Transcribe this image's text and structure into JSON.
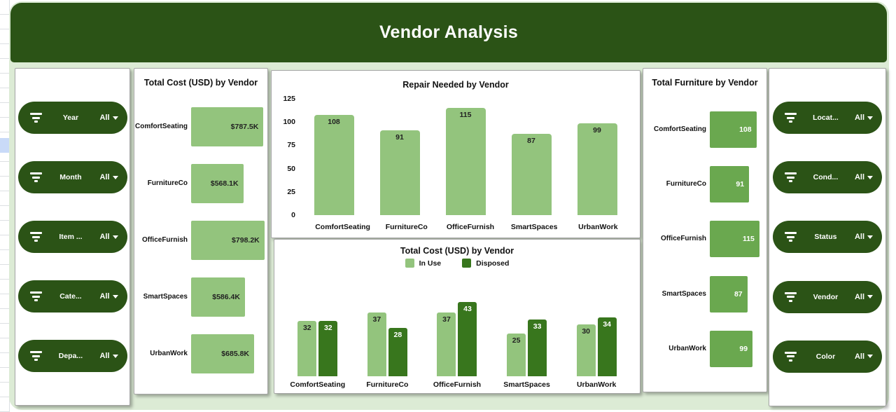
{
  "header": {
    "title": "Vendor Analysis"
  },
  "colors": {
    "header_green": "#2b5316",
    "pill_green": "#2b5316",
    "dashboard_bg": "#dcebd5",
    "light_bar": "#93c47d",
    "medium_bar": "#6aa84f",
    "dark_bar": "#38761d",
    "selected_cell_blue": "#c9daf8"
  },
  "filters": {
    "all_label": "All",
    "left": [
      {
        "label": "Year",
        "value": "All"
      },
      {
        "label": "Month",
        "value": "All"
      },
      {
        "label": "Item ...",
        "value": "All"
      },
      {
        "label": "Cate...",
        "value": "All"
      },
      {
        "label": "Depa...",
        "value": "All"
      }
    ],
    "right": [
      {
        "label": "Locat...",
        "value": "All"
      },
      {
        "label": "Cond...",
        "value": "All"
      },
      {
        "label": "Status",
        "value": "All"
      },
      {
        "label": "Vendor",
        "value": "All"
      },
      {
        "label": "Color",
        "value": "All"
      }
    ]
  },
  "chart_data": [
    {
      "id": "total-cost-by-vendor",
      "type": "bar",
      "orientation": "horizontal",
      "title": "Total Cost (USD) by Vendor",
      "categories": [
        "ComfortSeating",
        "FurnitureCo",
        "OfficeFurnish",
        "SmartSpaces",
        "UrbanWork"
      ],
      "values": [
        787.5,
        568.1,
        798.2,
        586.4,
        685.8
      ],
      "value_labels": [
        "$787.5K",
        "$568.1K",
        "$798.2K",
        "$586.4K",
        "$685.8K"
      ],
      "xlim": [
        0,
        800
      ],
      "bar_color": "#93c47d",
      "value_label_style": "dark",
      "grid": false
    },
    {
      "id": "repair-needed-by-vendor",
      "type": "bar",
      "orientation": "vertical",
      "title": "Repair Needed by Vendor",
      "categories": [
        "ComfortSeating",
        "FurnitureCo",
        "OfficeFurnish",
        "SmartSpaces",
        "UrbanWork"
      ],
      "values": [
        108,
        91,
        115,
        87,
        99
      ],
      "ylim": [
        0,
        125
      ],
      "yticks": [
        0,
        25,
        50,
        75,
        100,
        125
      ],
      "bar_color": "#93c47d",
      "value_label_style": "dark",
      "grid": false
    },
    {
      "id": "total-cost-by-vendor-by-status",
      "type": "bar",
      "orientation": "vertical",
      "title": "Total Cost (USD) by Vendor",
      "categories": [
        "ComfortSeating",
        "FurnitureCo",
        "OfficeFurnish",
        "SmartSpaces",
        "UrbanWork"
      ],
      "series": [
        {
          "name": "In Use",
          "color": "#93c47d",
          "value_label_style": "dark",
          "values": [
            32,
            37,
            37,
            25,
            30
          ]
        },
        {
          "name": "Disposed",
          "color": "#38761d",
          "value_label_style": "white",
          "values": [
            32,
            28,
            43,
            33,
            34
          ]
        }
      ],
      "legend_position": "top",
      "ylim": [
        0,
        50
      ],
      "grid": false
    },
    {
      "id": "total-furniture-by-vendor",
      "type": "bar",
      "orientation": "horizontal",
      "title": "Total Furniture by Vendor",
      "categories": [
        "ComfortSeating",
        "FurnitureCo",
        "OfficeFurnish",
        "SmartSpaces",
        "UrbanWork"
      ],
      "values": [
        108,
        91,
        115,
        87,
        99
      ],
      "value_labels": [
        "108",
        "91",
        "115",
        "87",
        "99"
      ],
      "xlim": [
        0,
        120
      ],
      "bar_color": "#6aa84f",
      "value_label_style": "white",
      "grid": false
    }
  ]
}
